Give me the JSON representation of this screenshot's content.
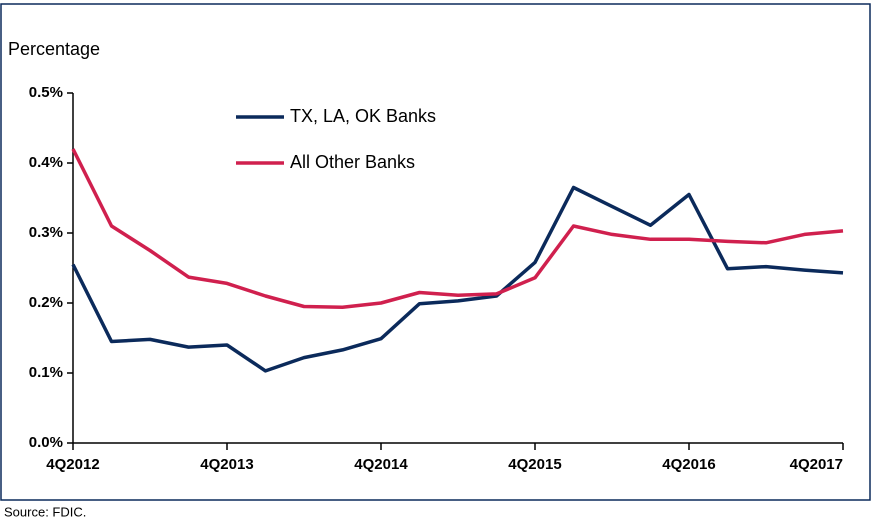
{
  "chart_data": {
    "type": "line",
    "y_label": "Percentage",
    "source": "Source: FDIC.",
    "categories": [
      "4Q2012",
      null,
      null,
      null,
      "4Q2013",
      null,
      null,
      null,
      "4Q2014",
      null,
      null,
      null,
      "4Q2015",
      null,
      null,
      null,
      "4Q2016",
      null,
      null,
      null,
      "4Q2017"
    ],
    "series": [
      {
        "name": "TX, LA, OK Banks",
        "color": "#0b2a5b",
        "values": [
          0.255,
          0.145,
          0.148,
          0.137,
          0.14,
          0.103,
          0.122,
          0.133,
          0.149,
          0.199,
          0.203,
          0.21,
          0.258,
          0.365,
          0.338,
          0.311,
          0.355,
          0.249,
          0.252,
          0.247,
          0.243
        ]
      },
      {
        "name": "All Other Banks",
        "color": "#d0204e",
        "values": [
          0.42,
          0.31,
          0.275,
          0.237,
          0.228,
          0.21,
          0.195,
          0.194,
          0.2,
          0.215,
          0.211,
          0.213,
          0.236,
          0.31,
          0.298,
          0.291,
          0.291,
          0.288,
          0.286,
          0.298,
          0.303
        ]
      }
    ],
    "ylim": [
      0,
      0.5
    ],
    "yticks": [
      {
        "value": 0,
        "label": "0.0%"
      },
      {
        "value": 0.1,
        "label": "0.1%"
      },
      {
        "value": 0.2,
        "label": "0.2%"
      },
      {
        "value": 0.3,
        "label": "0.3%"
      },
      {
        "value": 0.4,
        "label": "0.4%"
      },
      {
        "value": 0.5,
        "label": "0.5%"
      }
    ],
    "legend": "top-left"
  }
}
